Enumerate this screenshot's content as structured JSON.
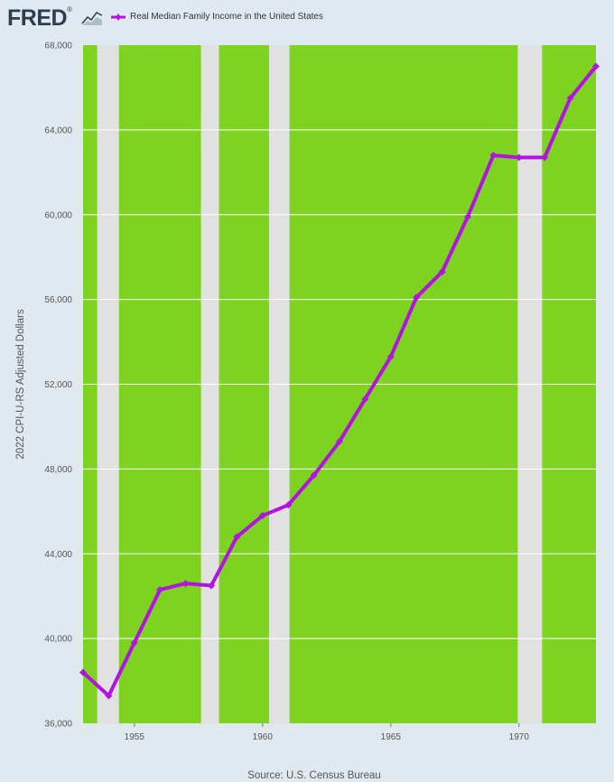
{
  "brand": {
    "logo_text": "FRED",
    "mark": "®"
  },
  "colors": {
    "plot_bg": "#7ed321",
    "recession": "#e1e1e1",
    "series": "#b312e3",
    "gridline": "#ffffff",
    "page_bg": "#e1e9f0"
  },
  "icons": {
    "logo_mark": "trend-chart-icon"
  },
  "chart_data": {
    "type": "line",
    "title": "",
    "xlabel": "",
    "ylabel": "2022 CPI-U-RS Adjusted Dollars",
    "source": "Source: U.S. Census Bureau",
    "legend": {
      "placement": "top-left",
      "entries": [
        "Real Median Family Income in the United States"
      ]
    },
    "xlim": [
      1953,
      1973
    ],
    "ylim": [
      36000,
      68000
    ],
    "y_ticks": [
      36000,
      40000,
      44000,
      48000,
      52000,
      56000,
      60000,
      64000,
      68000
    ],
    "y_tick_labels": [
      "36,000",
      "40,000",
      "44,000",
      "48,000",
      "52,000",
      "56,000",
      "60,000",
      "64,000",
      "68,000"
    ],
    "x_ticks": [
      1955,
      1960,
      1965,
      1970
    ],
    "x_tick_labels": [
      "1955",
      "1960",
      "1965",
      "1970"
    ],
    "grid": true,
    "recessions": [
      [
        1953.55,
        1954.4
      ],
      [
        1957.6,
        1958.3
      ],
      [
        1960.25,
        1961.05
      ],
      [
        1969.95,
        1970.9
      ]
    ],
    "series": [
      {
        "name": "Real Median Family Income in the United States",
        "x": [
          1953,
          1954,
          1955,
          1956,
          1957,
          1958,
          1959,
          1960,
          1961,
          1962,
          1963,
          1964,
          1965,
          1966,
          1967,
          1968,
          1969,
          1970,
          1971,
          1972,
          1973
        ],
        "y": [
          38400,
          37300,
          39800,
          42300,
          42600,
          42500,
          44800,
          45800,
          46300,
          47700,
          49300,
          51300,
          53300,
          56100,
          57300,
          59900,
          62800,
          62700,
          62700,
          65500,
          67000
        ]
      }
    ]
  }
}
